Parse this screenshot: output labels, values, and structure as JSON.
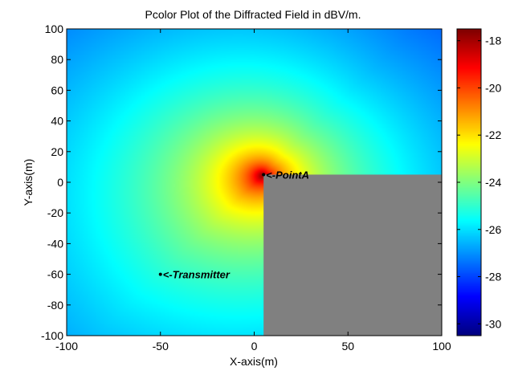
{
  "chart_data": {
    "type": "heatmap",
    "title": "Pcolor Plot of the Diffracted Field in dBV/m.",
    "xlabel": "X-axis(m)",
    "ylabel": "Y-axis(m)",
    "xlim": [
      -100,
      100
    ],
    "ylim": [
      -100,
      100
    ],
    "xticks": [
      "-100",
      "-50",
      "0",
      "50",
      "100"
    ],
    "yticks": [
      "100",
      "80",
      "60",
      "40",
      "20",
      "0",
      "-20",
      "-40",
      "-60",
      "-80",
      "-100"
    ],
    "colorbar": {
      "range": [
        -30.5,
        -17.5
      ],
      "ticks": [
        "-18",
        "-20",
        "-22",
        "-24",
        "-26",
        "-28",
        "-30"
      ],
      "colormap": "jet"
    },
    "field_model": {
      "peak_dbv_per_m": -18,
      "floor_dbv_per_m": -30.5,
      "peak_location": [
        5,
        5
      ],
      "transmitter_location": [
        -50,
        -60
      ]
    },
    "obstacle": {
      "x_range": [
        5,
        100
      ],
      "y_range": [
        -100,
        5
      ],
      "color": "#808080"
    },
    "annotations": [
      {
        "text": "<-PointA",
        "x": 5,
        "y": 5
      },
      {
        "text": "<-Transmitter",
        "x": -50,
        "y": -60
      }
    ]
  }
}
